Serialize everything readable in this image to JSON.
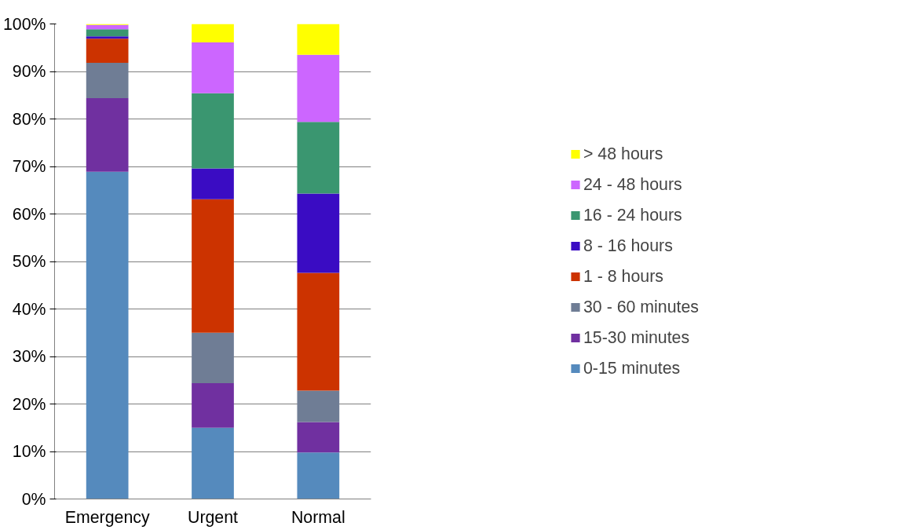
{
  "chart_data": {
    "type": "bar",
    "stacked": true,
    "categories": [
      "Emergency",
      "Urgent",
      "Normal"
    ],
    "series": [
      {
        "name": "0-15 minutes",
        "color": "#558abd",
        "values": [
          68.9,
          15.0,
          9.8
        ]
      },
      {
        "name": "15-30 minutes",
        "color": "#7030a0",
        "values": [
          15.5,
          9.4,
          6.4
        ]
      },
      {
        "name": "30 - 60 minutes",
        "color": "#6f7d95",
        "values": [
          7.4,
          10.6,
          6.6
        ]
      },
      {
        "name": "1 - 8 hours",
        "color": "#cc3300",
        "values": [
          5.1,
          28.1,
          24.8
        ]
      },
      {
        "name": "8 - 16 hours",
        "color": "#3a0cc3",
        "values": [
          0.5,
          6.5,
          16.7
        ]
      },
      {
        "name": "16 - 24 hours",
        "color": "#3a9670",
        "values": [
          1.5,
          15.8,
          15.1
        ]
      },
      {
        "name": "24 - 48 hours",
        "color": "#cc66ff",
        "values": [
          0.9,
          10.7,
          14.1
        ]
      },
      {
        "name": "> 48 hours",
        "color": "#ffff00",
        "values": [
          0.2,
          3.9,
          6.5
        ]
      }
    ],
    "ylim": [
      0,
      100
    ],
    "yticks": [
      {
        "value": 0,
        "label": "0%"
      },
      {
        "value": 10,
        "label": "10%"
      },
      {
        "value": 20,
        "label": "20%"
      },
      {
        "value": 30,
        "label": "30%"
      },
      {
        "value": 40,
        "label": "40%"
      },
      {
        "value": 50,
        "label": "50%"
      },
      {
        "value": 60,
        "label": "60%"
      },
      {
        "value": 70,
        "label": "70%"
      },
      {
        "value": 80,
        "label": "80%"
      },
      {
        "value": 90,
        "label": "90%"
      },
      {
        "value": 100,
        "label": "100%"
      }
    ],
    "grid": "y",
    "legend": "right"
  }
}
